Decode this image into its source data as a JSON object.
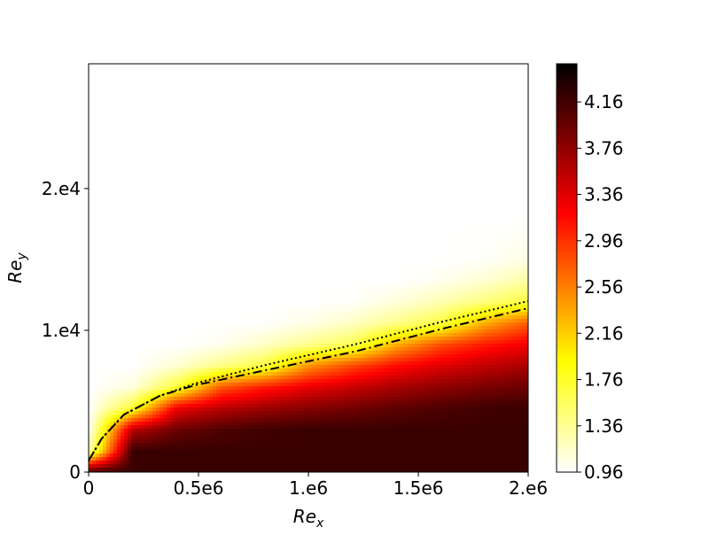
{
  "chart_data": {
    "type": "contourf",
    "xlabel": {
      "text": "Re",
      "sub": "x"
    },
    "ylabel": {
      "text": "Re",
      "sub": "y"
    },
    "xlim": [
      0,
      2000000
    ],
    "ylim": [
      0,
      28800
    ],
    "xticks": [
      0,
      {
        "value": 500000,
        "label": "0.5e6"
      },
      {
        "value": 1000000,
        "label": "1.e6"
      },
      {
        "value": 1500000,
        "label": "1.5e6"
      },
      {
        "value": 2000000,
        "label": "2.e6"
      }
    ],
    "yticks": [
      0,
      {
        "value": 10000,
        "label": "1.e4"
      },
      {
        "value": 20000,
        "label": "2.e4"
      }
    ],
    "colormap": "hot_r",
    "clim": [
      0.96,
      4.49
    ],
    "cticks": [
      0.96,
      1.36,
      1.76,
      2.16,
      2.56,
      2.96,
      3.36,
      3.76,
      4.16
    ],
    "grid_x": [
      0,
      200000,
      400000,
      600000,
      800000,
      1000000,
      1200000,
      1400000,
      1600000,
      1800000,
      2000000
    ],
    "grid_y": [
      0,
      1500,
      3000,
      4500,
      6000,
      7500,
      9000,
      10500,
      12000,
      13500,
      15000,
      18000,
      22000,
      28800
    ],
    "z": [
      [
        4.2,
        4.2,
        4.2,
        4.2,
        4.2,
        4.2,
        4.2,
        4.2,
        4.2,
        4.2,
        4.2
      ],
      [
        1.2,
        4.2,
        4.2,
        4.2,
        4.2,
        4.2,
        4.2,
        4.2,
        4.2,
        4.2,
        4.2
      ],
      [
        0.96,
        3.55,
        3.95,
        4.09,
        4.17,
        4.2,
        4.2,
        4.2,
        4.2,
        4.2,
        4.2
      ],
      [
        0.96,
        1.73,
        3.27,
        3.55,
        3.7,
        3.82,
        3.92,
        4.02,
        4.1,
        4.17,
        4.2
      ],
      [
        0.96,
        1.07,
        1.69,
        2.74,
        3.06,
        3.3,
        3.47,
        3.64,
        3.77,
        3.87,
        3.95
      ],
      [
        0.96,
        0.96,
        1.12,
        1.4,
        1.67,
        2.45,
        2.84,
        3.15,
        3.36,
        3.51,
        3.64
      ],
      [
        0.96,
        0.96,
        0.96,
        1.02,
        1.17,
        1.38,
        1.59,
        2.31,
        2.8,
        3.07,
        3.27
      ],
      [
        0.96,
        0.96,
        0.96,
        0.96,
        0.97,
        1.05,
        1.18,
        1.4,
        1.65,
        2.32,
        2.75
      ],
      [
        0.96,
        0.96,
        0.96,
        0.96,
        0.96,
        0.96,
        0.98,
        1.09,
        1.25,
        1.44,
        1.68
      ],
      [
        0.96,
        0.96,
        0.96,
        0.96,
        0.96,
        0.96,
        0.96,
        0.96,
        1.02,
        1.13,
        1.3
      ],
      [
        0.96,
        0.96,
        0.96,
        0.96,
        0.96,
        0.96,
        0.96,
        0.96,
        0.96,
        0.98,
        1.06
      ],
      [
        0.96,
        0.96,
        0.96,
        0.96,
        0.96,
        0.96,
        0.96,
        0.96,
        0.96,
        0.96,
        0.96
      ],
      [
        0.96,
        0.96,
        0.96,
        0.96,
        0.96,
        0.96,
        0.96,
        0.96,
        0.96,
        0.96,
        0.96
      ],
      [
        0.96,
        0.96,
        0.96,
        0.96,
        0.96,
        0.96,
        0.96,
        0.96,
        0.96,
        0.96,
        0.96
      ]
    ],
    "lines": [
      {
        "style": "dashdot",
        "color": "#000000",
        "x": [
          0,
          60000,
          161000,
          323000,
          484000,
          806000,
          1210000,
          1613000,
          2000000
        ],
        "y": [
          810,
          2375,
          4060,
          5375,
          6125,
          7190,
          8500,
          10125,
          11560
        ]
      },
      {
        "style": "dotted",
        "color": "#000000",
        "x": [
          0,
          60000,
          161000,
          323000,
          484000,
          806000,
          1210000,
          1613000,
          2000000
        ],
        "y": [
          810,
          2375,
          4060,
          5375,
          6250,
          7560,
          9000,
          10625,
          12060
        ]
      }
    ]
  }
}
